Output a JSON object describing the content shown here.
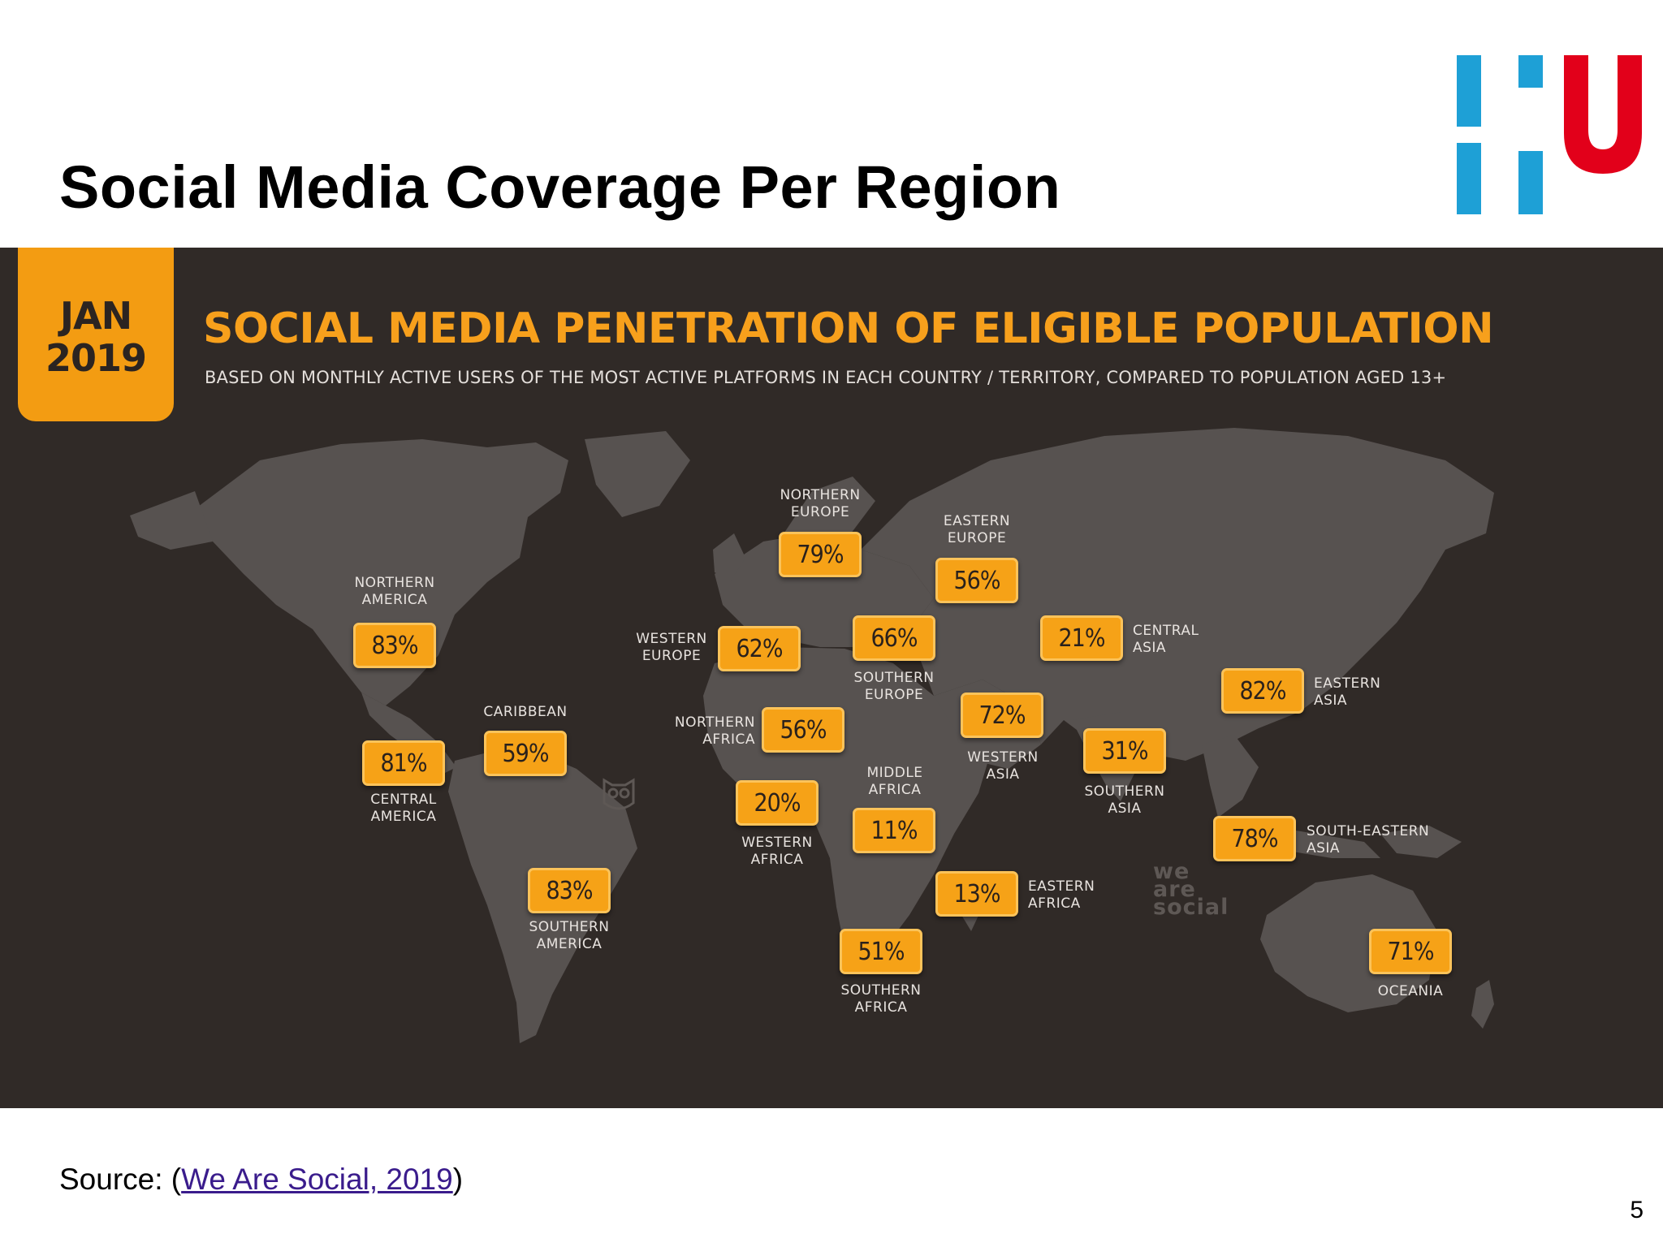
{
  "slide": {
    "title": "Social Media Coverage Per Region",
    "page_number": "5",
    "source_prefix": "Source: (",
    "source_link": "We Are Social, 2019",
    "source_suffix": ")"
  },
  "logo": {
    "colors": {
      "blue": "#1ea0d6",
      "red": "#e2001a"
    }
  },
  "infographic": {
    "date_line1": "JAN",
    "date_line2": "2019",
    "title": "SOCIAL MEDIA PENETRATION OF ELIGIBLE POPULATION",
    "subtitle": "BASED ON MONTHLY ACTIVE USERS OF THE MOST ACTIVE PLATFORMS IN EACH COUNTRY / TERRITORY, COMPARED TO POPULATION AGED 13+",
    "watermark": [
      "we",
      "are",
      "social"
    ],
    "colors": {
      "background": "#302a27",
      "land": "#575250",
      "accent": "#f6a217"
    }
  },
  "regions": [
    {
      "name": "NORTHERN\nAMERICA",
      "value": "83%"
    },
    {
      "name": "CENTRAL\nAMERICA",
      "value": "81%"
    },
    {
      "name": "CARIBBEAN",
      "value": "59%"
    },
    {
      "name": "SOUTHERN\nAMERICA",
      "value": "83%"
    },
    {
      "name": "NORTHERN\nEUROPE",
      "value": "79%"
    },
    {
      "name": "WESTERN\nEUROPE",
      "value": "62%"
    },
    {
      "name": "SOUTHERN\nEUROPE",
      "value": "66%"
    },
    {
      "name": "EASTERN\nEUROPE",
      "value": "56%"
    },
    {
      "name": "NORTHERN\nAFRICA",
      "value": "56%"
    },
    {
      "name": "WESTERN\nAFRICA",
      "value": "20%"
    },
    {
      "name": "MIDDLE\nAFRICA",
      "value": "11%"
    },
    {
      "name": "EASTERN\nAFRICA",
      "value": "13%"
    },
    {
      "name": "SOUTHERN\nAFRICA",
      "value": "51%"
    },
    {
      "name": "WESTERN\nASIA",
      "value": "72%"
    },
    {
      "name": "CENTRAL\nASIA",
      "value": "21%"
    },
    {
      "name": "SOUTHERN\nASIA",
      "value": "31%"
    },
    {
      "name": "EASTERN\nASIA",
      "value": "82%"
    },
    {
      "name": "SOUTH-EASTERN\nASIA",
      "value": "78%"
    },
    {
      "name": "OCEANIA",
      "value": "71%"
    }
  ]
}
